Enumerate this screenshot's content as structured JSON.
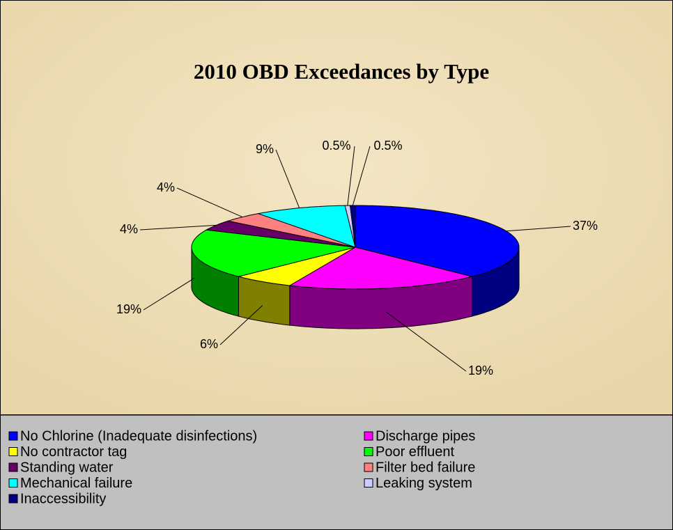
{
  "chart_data": {
    "type": "pie3d",
    "title": "2010 OBD Exceedances by Type",
    "categories": [
      "No Chlorine (Inadequate disinfections)",
      "Discharge pipes",
      "No contractor tag",
      "Poor effluent",
      "Standing water",
      "Filter bed failure",
      "Mechanical failure",
      "Leaking system",
      "Inaccessibility"
    ],
    "values": [
      37,
      19,
      6,
      19,
      4,
      4,
      9,
      0.5,
      0.5
    ],
    "value_labels": [
      "37%",
      "19%",
      "6%",
      "19%",
      "4%",
      "4%",
      "9%",
      "0.5%",
      "0.5%"
    ],
    "colors": [
      "#0000ff",
      "#ff00ff",
      "#ffff00",
      "#00ff00",
      "#660066",
      "#ff8080",
      "#00ffff",
      "#ccccff",
      "#000080"
    ],
    "legend": "bottom"
  }
}
